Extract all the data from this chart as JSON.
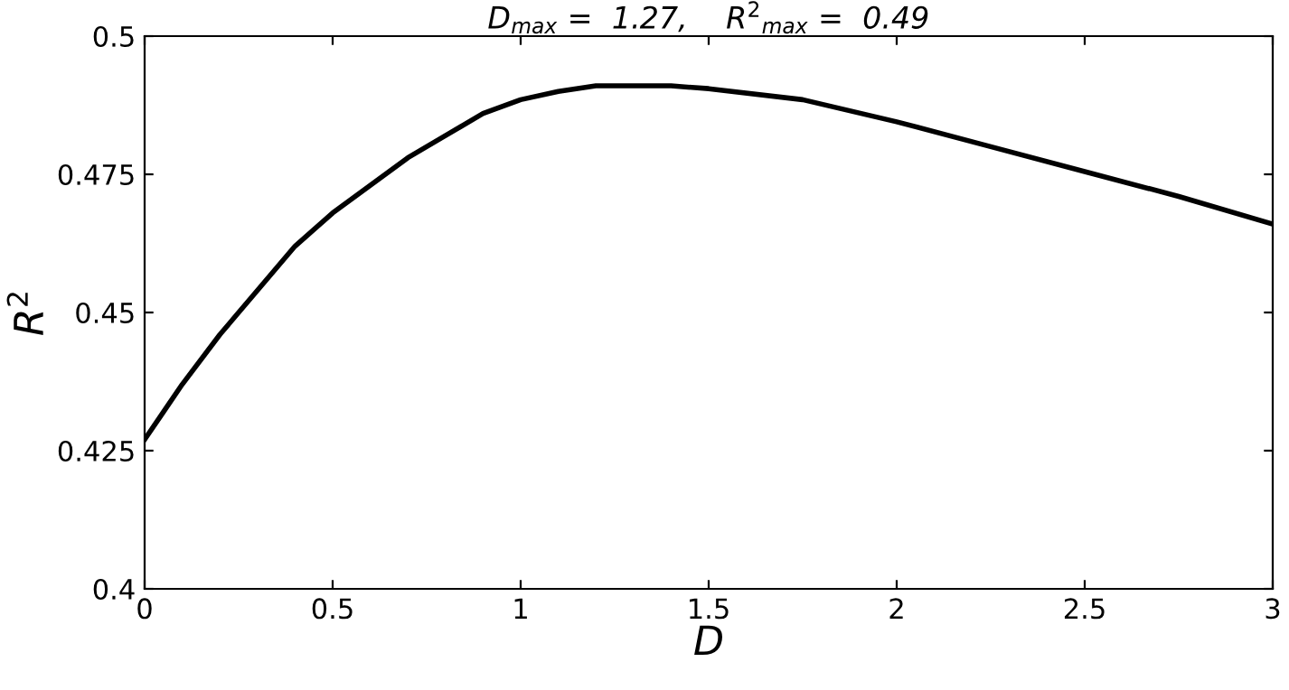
{
  "chart_data": {
    "type": "line",
    "title": "D$_{max}$ =  1.27,    R$^{2}$$_{max}$ =  0.49",
    "xlabel": "D",
    "ylabel": "R$^{2}$",
    "series": [
      {
        "color": "#000000",
        "x": [
          0,
          0.05,
          0.1,
          0.2,
          0.3,
          0.4,
          0.5,
          0.6,
          0.7,
          0.8,
          0.9,
          1.0,
          1.1,
          1.2,
          1.27,
          1.4,
          1.5,
          1.75,
          2.0,
          2.25,
          2.5,
          2.75,
          3.0
        ],
        "values": [
          0.427,
          0.432,
          0.437,
          0.446,
          0.454,
          0.462,
          0.468,
          0.473,
          0.478,
          0.482,
          0.486,
          0.4885,
          0.49,
          0.491,
          0.491,
          0.491,
          0.4905,
          0.4885,
          0.4845,
          0.48,
          0.4755,
          0.471,
          0.466
        ]
      }
    ],
    "xlim": [
      0,
      3
    ],
    "xticks": [
      0,
      0.5,
      1,
      1.5,
      2,
      2.5,
      3
    ],
    "ylim": [
      0.4,
      0.5
    ],
    "yticks": [
      0.4,
      0.425,
      0.45,
      0.475,
      0.5
    ],
    "grid": false,
    "legend": false,
    "marker": "none",
    "line_style": "solid"
  }
}
